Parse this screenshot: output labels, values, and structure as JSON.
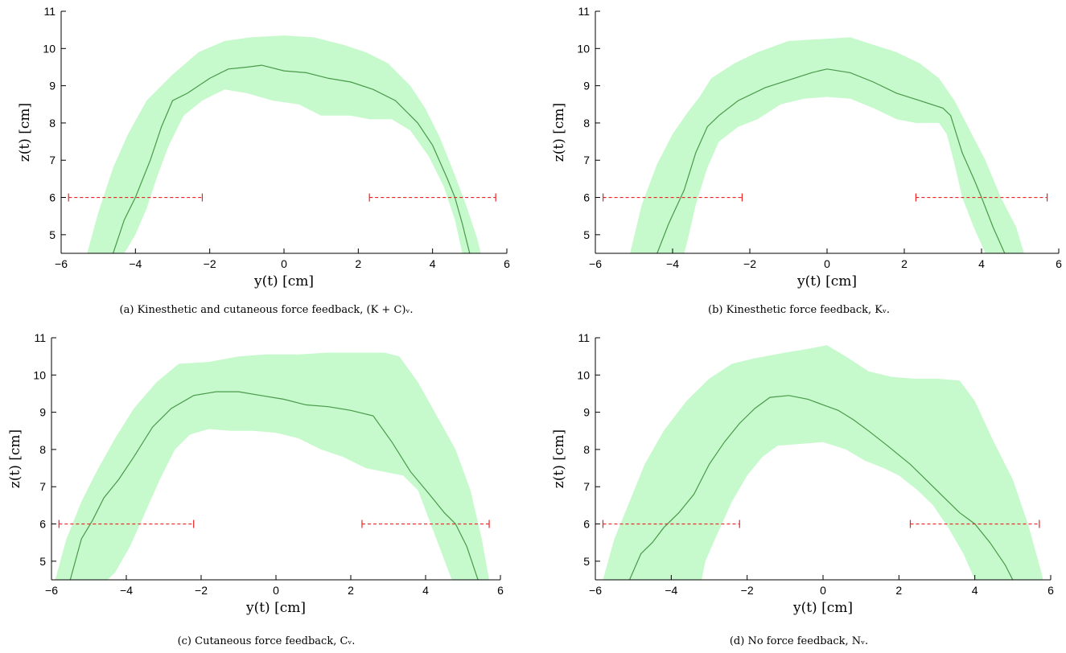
{
  "figure": {
    "colors": {
      "band": "#c6f9cc",
      "mean_line": "#4a9a4a",
      "range_line": "#ee2222",
      "axis": "#000000"
    }
  },
  "chart_data": [
    {
      "type": "area",
      "caption": "(a) Kinesthetic and cutaneous force feedback, (K + C)ᵥ.",
      "xlabel": "y(t) [cm]",
      "ylabel": "z(t) [cm]",
      "xlim": [
        -6,
        6
      ],
      "ylim": [
        4.5,
        11
      ],
      "xticks": [
        -6,
        -4,
        -2,
        0,
        2,
        4,
        6
      ],
      "yticks": [
        5,
        6,
        7,
        8,
        9,
        10,
        11
      ],
      "grid": false,
      "mean_path": [
        [
          -4.6,
          4.5
        ],
        [
          -4.3,
          5.4
        ],
        [
          -4.0,
          6.0
        ],
        [
          -3.6,
          7.0
        ],
        [
          -3.3,
          7.9
        ],
        [
          -3.0,
          8.6
        ],
        [
          -2.6,
          8.8
        ],
        [
          -2.0,
          9.2
        ],
        [
          -1.5,
          9.45
        ],
        [
          -1.0,
          9.5
        ],
        [
          -0.6,
          9.55
        ],
        [
          0.0,
          9.4
        ],
        [
          0.6,
          9.35
        ],
        [
          1.2,
          9.2
        ],
        [
          1.8,
          9.1
        ],
        [
          2.4,
          8.9
        ],
        [
          3.0,
          8.6
        ],
        [
          3.6,
          8.0
        ],
        [
          4.0,
          7.4
        ],
        [
          4.4,
          6.5
        ],
        [
          4.6,
          6.0
        ],
        [
          4.8,
          5.3
        ],
        [
          5.0,
          4.5
        ]
      ],
      "band_upper": [
        [
          -5.3,
          4.5
        ],
        [
          -5.0,
          5.6
        ],
        [
          -4.6,
          6.8
        ],
        [
          -4.2,
          7.7
        ],
        [
          -3.7,
          8.6
        ],
        [
          -3.0,
          9.3
        ],
        [
          -2.3,
          9.9
        ],
        [
          -1.6,
          10.2
        ],
        [
          -0.9,
          10.3
        ],
        [
          0.0,
          10.35
        ],
        [
          0.8,
          10.3
        ],
        [
          1.6,
          10.1
        ],
        [
          2.2,
          9.9
        ],
        [
          2.8,
          9.6
        ],
        [
          3.4,
          9.0
        ],
        [
          3.8,
          8.4
        ],
        [
          4.2,
          7.6
        ],
        [
          4.6,
          6.6
        ],
        [
          4.9,
          5.8
        ],
        [
          5.2,
          4.9
        ],
        [
          5.3,
          4.5
        ]
      ],
      "band_lower": [
        [
          4.8,
          4.5
        ],
        [
          4.6,
          5.4
        ],
        [
          4.3,
          6.3
        ],
        [
          3.9,
          7.1
        ],
        [
          3.4,
          7.8
        ],
        [
          2.9,
          8.1
        ],
        [
          2.3,
          8.1
        ],
        [
          1.8,
          8.2
        ],
        [
          1.0,
          8.2
        ],
        [
          0.4,
          8.5
        ],
        [
          -0.3,
          8.6
        ],
        [
          -1.0,
          8.8
        ],
        [
          -1.6,
          8.9
        ],
        [
          -2.2,
          8.6
        ],
        [
          -2.7,
          8.2
        ],
        [
          -3.1,
          7.4
        ],
        [
          -3.4,
          6.6
        ],
        [
          -3.7,
          5.7
        ],
        [
          -4.0,
          5.0
        ],
        [
          -4.3,
          4.5
        ]
      ],
      "ranges": [
        [
          -5.8,
          -2.2,
          6.0
        ],
        [
          2.3,
          5.7,
          6.0
        ]
      ]
    },
    {
      "type": "area",
      "caption": "(b) Kinesthetic force feedback, Kᵥ.",
      "xlabel": "y(t) [cm]",
      "ylabel": "z(t) [cm]",
      "xlim": [
        -6,
        6
      ],
      "ylim": [
        4.5,
        11
      ],
      "xticks": [
        -6,
        -4,
        -2,
        0,
        2,
        4,
        6
      ],
      "yticks": [
        5,
        6,
        7,
        8,
        9,
        10,
        11
      ],
      "grid": false,
      "mean_path": [
        [
          -4.4,
          4.5
        ],
        [
          -4.1,
          5.3
        ],
        [
          -3.7,
          6.2
        ],
        [
          -3.4,
          7.2
        ],
        [
          -3.1,
          7.9
        ],
        [
          -2.8,
          8.2
        ],
        [
          -2.3,
          8.6
        ],
        [
          -1.6,
          8.95
        ],
        [
          -1.0,
          9.15
        ],
        [
          -0.4,
          9.35
        ],
        [
          0.0,
          9.45
        ],
        [
          0.6,
          9.35
        ],
        [
          1.2,
          9.1
        ],
        [
          1.8,
          8.8
        ],
        [
          2.4,
          8.6
        ],
        [
          3.0,
          8.4
        ],
        [
          3.2,
          8.2
        ],
        [
          3.5,
          7.2
        ],
        [
          3.8,
          6.5
        ],
        [
          4.0,
          6.0
        ],
        [
          4.3,
          5.2
        ],
        [
          4.6,
          4.5
        ]
      ],
      "band_upper": [
        [
          -5.1,
          4.5
        ],
        [
          -4.8,
          5.8
        ],
        [
          -4.4,
          6.9
        ],
        [
          -4.0,
          7.7
        ],
        [
          -3.6,
          8.3
        ],
        [
          -3.3,
          8.7
        ],
        [
          -3.0,
          9.2
        ],
        [
          -2.4,
          9.6
        ],
        [
          -1.8,
          9.9
        ],
        [
          -1.0,
          10.2
        ],
        [
          -0.2,
          10.25
        ],
        [
          0.6,
          10.3
        ],
        [
          1.2,
          10.1
        ],
        [
          1.8,
          9.9
        ],
        [
          2.4,
          9.6
        ],
        [
          2.9,
          9.2
        ],
        [
          3.3,
          8.6
        ],
        [
          3.7,
          7.8
        ],
        [
          4.1,
          7.0
        ],
        [
          4.5,
          6.0
        ],
        [
          4.9,
          5.2
        ],
        [
          5.1,
          4.5
        ]
      ],
      "band_lower": [
        [
          4.1,
          4.5
        ],
        [
          3.8,
          5.2
        ],
        [
          3.5,
          6.0
        ],
        [
          3.3,
          6.9
        ],
        [
          3.1,
          7.7
        ],
        [
          2.9,
          8.0
        ],
        [
          2.3,
          8.0
        ],
        [
          1.8,
          8.1
        ],
        [
          1.2,
          8.4
        ],
        [
          0.6,
          8.65
        ],
        [
          0.0,
          8.7
        ],
        [
          -0.6,
          8.65
        ],
        [
          -1.2,
          8.5
        ],
        [
          -1.8,
          8.1
        ],
        [
          -2.3,
          7.9
        ],
        [
          -2.8,
          7.5
        ],
        [
          -3.1,
          6.8
        ],
        [
          -3.4,
          5.8
        ],
        [
          -3.6,
          4.9
        ],
        [
          -3.7,
          4.5
        ]
      ],
      "ranges": [
        [
          -5.8,
          -2.2,
          6.0
        ],
        [
          2.3,
          5.7,
          6.0
        ]
      ]
    },
    {
      "type": "area",
      "caption": "(c) Cutaneous force feedback, Cᵥ.",
      "xlabel": "y(t) [cm]",
      "ylabel": "z(t) [cm]",
      "xlim": [
        -6,
        6
      ],
      "ylim": [
        4.5,
        11
      ],
      "xticks": [
        -6,
        -4,
        -2,
        0,
        2,
        4,
        6
      ],
      "yticks": [
        5,
        6,
        7,
        8,
        9,
        10,
        11
      ],
      "grid": false,
      "mean_path": [
        [
          -5.5,
          4.5
        ],
        [
          -5.2,
          5.6
        ],
        [
          -4.9,
          6.1
        ],
        [
          -4.6,
          6.7
        ],
        [
          -4.2,
          7.2
        ],
        [
          -3.8,
          7.8
        ],
        [
          -3.3,
          8.6
        ],
        [
          -2.8,
          9.1
        ],
        [
          -2.2,
          9.45
        ],
        [
          -1.6,
          9.55
        ],
        [
          -1.0,
          9.55
        ],
        [
          -0.4,
          9.45
        ],
        [
          0.2,
          9.35
        ],
        [
          0.8,
          9.2
        ],
        [
          1.4,
          9.15
        ],
        [
          2.0,
          9.05
        ],
        [
          2.6,
          8.9
        ],
        [
          3.1,
          8.2
        ],
        [
          3.6,
          7.4
        ],
        [
          4.1,
          6.8
        ],
        [
          4.5,
          6.3
        ],
        [
          4.8,
          6.0
        ],
        [
          5.1,
          5.4
        ],
        [
          5.4,
          4.5
        ]
      ],
      "band_upper": [
        [
          -5.9,
          4.5
        ],
        [
          -5.6,
          5.6
        ],
        [
          -5.2,
          6.6
        ],
        [
          -4.8,
          7.4
        ],
        [
          -4.3,
          8.3
        ],
        [
          -3.8,
          9.1
        ],
        [
          -3.2,
          9.8
        ],
        [
          -2.6,
          10.3
        ],
        [
          -1.8,
          10.35
        ],
        [
          -1.0,
          10.5
        ],
        [
          -0.3,
          10.55
        ],
        [
          0.6,
          10.55
        ],
        [
          1.4,
          10.6
        ],
        [
          2.2,
          10.6
        ],
        [
          2.9,
          10.6
        ],
        [
          3.3,
          10.5
        ],
        [
          3.8,
          9.8
        ],
        [
          4.3,
          8.9
        ],
        [
          4.8,
          8.0
        ],
        [
          5.2,
          6.9
        ],
        [
          5.5,
          5.6
        ],
        [
          5.7,
          4.5
        ]
      ],
      "band_lower": [
        [
          4.7,
          4.5
        ],
        [
          4.4,
          5.3
        ],
        [
          4.1,
          6.1
        ],
        [
          3.8,
          6.9
        ],
        [
          3.4,
          7.3
        ],
        [
          2.9,
          7.4
        ],
        [
          2.4,
          7.5
        ],
        [
          1.8,
          7.8
        ],
        [
          1.2,
          8.0
        ],
        [
          0.6,
          8.3
        ],
        [
          0.0,
          8.45
        ],
        [
          -0.6,
          8.5
        ],
        [
          -1.2,
          8.5
        ],
        [
          -1.8,
          8.55
        ],
        [
          -2.3,
          8.4
        ],
        [
          -2.7,
          8.0
        ],
        [
          -3.1,
          7.2
        ],
        [
          -3.5,
          6.3
        ],
        [
          -3.9,
          5.4
        ],
        [
          -4.3,
          4.7
        ],
        [
          -4.5,
          4.5
        ]
      ],
      "ranges": [
        [
          -5.8,
          -2.2,
          6.0
        ],
        [
          2.3,
          5.7,
          6.0
        ]
      ]
    },
    {
      "type": "area",
      "caption": "(d) No force feedback, Nᵥ.",
      "xlabel": "y(t) [cm]",
      "ylabel": "z(t) [cm]",
      "xlim": [
        -6,
        6
      ],
      "ylim": [
        4.5,
        11
      ],
      "xticks": [
        -6,
        -4,
        -2,
        0,
        2,
        4,
        6
      ],
      "yticks": [
        5,
        6,
        7,
        8,
        9,
        10,
        11
      ],
      "grid": false,
      "mean_path": [
        [
          -5.1,
          4.5
        ],
        [
          -4.8,
          5.2
        ],
        [
          -4.5,
          5.5
        ],
        [
          -4.2,
          5.9
        ],
        [
          -3.8,
          6.3
        ],
        [
          -3.4,
          6.8
        ],
        [
          -3.0,
          7.6
        ],
        [
          -2.6,
          8.2
        ],
        [
          -2.2,
          8.7
        ],
        [
          -1.8,
          9.1
        ],
        [
          -1.4,
          9.4
        ],
        [
          -0.9,
          9.45
        ],
        [
          -0.4,
          9.35
        ],
        [
          0.0,
          9.2
        ],
        [
          0.4,
          9.05
        ],
        [
          0.8,
          8.8
        ],
        [
          1.2,
          8.5
        ],
        [
          1.7,
          8.1
        ],
        [
          2.3,
          7.6
        ],
        [
          2.8,
          7.1
        ],
        [
          3.2,
          6.7
        ],
        [
          3.6,
          6.3
        ],
        [
          4.0,
          6.0
        ],
        [
          4.4,
          5.5
        ],
        [
          4.8,
          4.9
        ],
        [
          5.0,
          4.5
        ]
      ],
      "band_upper": [
        [
          -5.8,
          4.5
        ],
        [
          -5.5,
          5.6
        ],
        [
          -5.1,
          6.6
        ],
        [
          -4.7,
          7.6
        ],
        [
          -4.2,
          8.5
        ],
        [
          -3.6,
          9.3
        ],
        [
          -3.0,
          9.9
        ],
        [
          -2.4,
          10.3
        ],
        [
          -1.8,
          10.45
        ],
        [
          -1.0,
          10.6
        ],
        [
          -0.4,
          10.7
        ],
        [
          0.1,
          10.8
        ],
        [
          0.6,
          10.5
        ],
        [
          1.2,
          10.1
        ],
        [
          1.8,
          9.95
        ],
        [
          2.4,
          9.9
        ],
        [
          3.0,
          9.9
        ],
        [
          3.6,
          9.85
        ],
        [
          4.0,
          9.3
        ],
        [
          4.5,
          8.2
        ],
        [
          5.0,
          7.2
        ],
        [
          5.4,
          6.0
        ],
        [
          5.7,
          4.9
        ],
        [
          5.8,
          4.5
        ]
      ],
      "band_lower": [
        [
          4.0,
          4.5
        ],
        [
          3.7,
          5.2
        ],
        [
          3.3,
          5.9
        ],
        [
          2.9,
          6.5
        ],
        [
          2.5,
          6.9
        ],
        [
          2.0,
          7.3
        ],
        [
          1.6,
          7.5
        ],
        [
          1.1,
          7.7
        ],
        [
          0.6,
          8.0
        ],
        [
          0.0,
          8.2
        ],
        [
          -0.6,
          8.15
        ],
        [
          -1.2,
          8.1
        ],
        [
          -1.6,
          7.8
        ],
        [
          -2.0,
          7.3
        ],
        [
          -2.4,
          6.6
        ],
        [
          -2.8,
          5.7
        ],
        [
          -3.1,
          5.0
        ],
        [
          -3.2,
          4.5
        ]
      ],
      "ranges": [
        [
          -5.8,
          -2.2,
          6.0
        ],
        [
          2.3,
          5.7,
          6.0
        ]
      ]
    }
  ]
}
